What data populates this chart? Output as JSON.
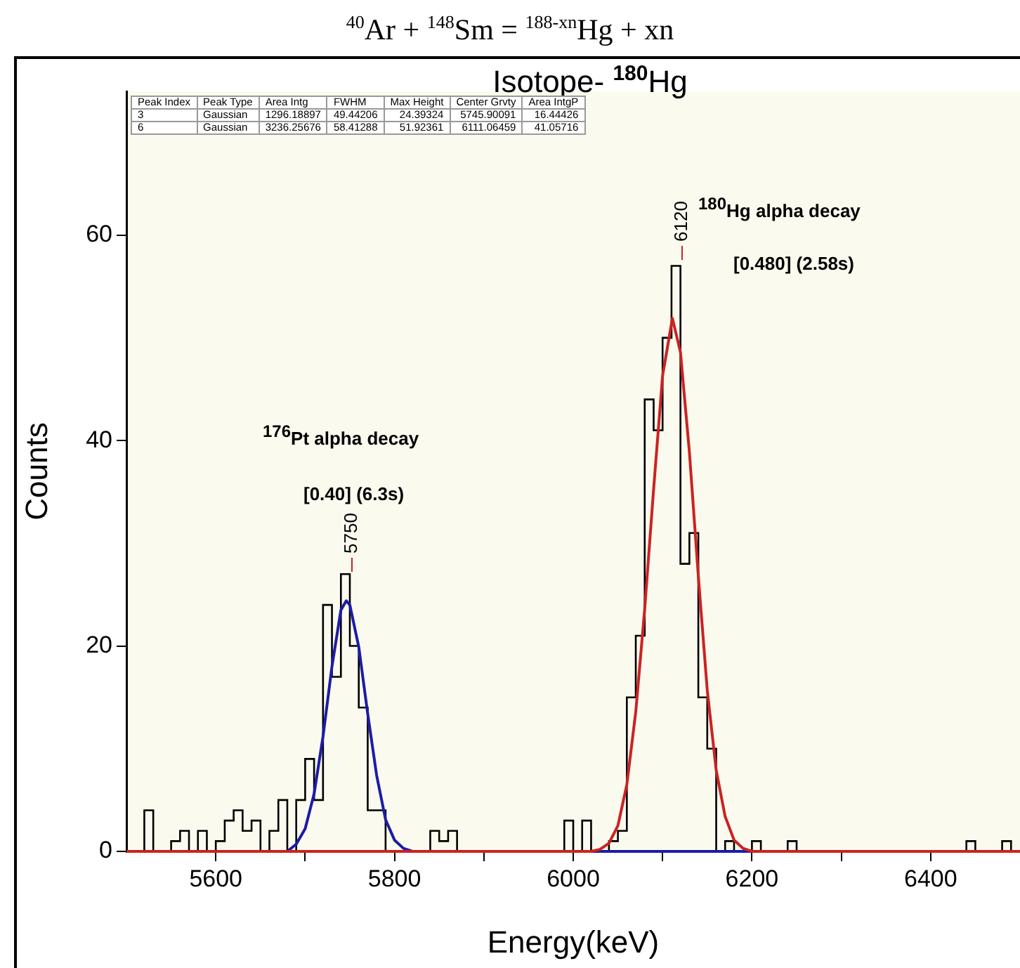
{
  "chart_data": {
    "type": "step",
    "title": "$^{40}$Ar + $^{148}$Sm = $^{188-xn}$Hg + xn",
    "subtitle": "Isotope- $^{180}$Hg",
    "xlabel": "Energy(keV)",
    "ylabel": "Counts",
    "series": [
      {
        "color": "#000000",
        "x": [
          5500,
          5510,
          5520,
          5530,
          5540,
          5550,
          5560,
          5570,
          5580,
          5590,
          5600,
          5610,
          5620,
          5630,
          5640,
          5650,
          5660,
          5670,
          5680,
          5690,
          5700,
          5710,
          5720,
          5730,
          5740,
          5750,
          5760,
          5770,
          5780,
          5790,
          5800,
          5810,
          5820,
          5830,
          5840,
          5850,
          5860,
          5870,
          5880,
          5890,
          5900,
          5910,
          5920,
          5930,
          5940,
          5950,
          5960,
          5970,
          5980,
          5990,
          6000,
          6010,
          6020,
          6030,
          6040,
          6050,
          6060,
          6070,
          6080,
          6090,
          6100,
          6110,
          6120,
          6130,
          6140,
          6150,
          6160,
          6170,
          6180,
          6190,
          6200,
          6210,
          6220,
          6230,
          6240,
          6250,
          6260,
          6270,
          6280,
          6290,
          6300,
          6310,
          6320,
          6330,
          6340,
          6350,
          6360,
          6370,
          6380,
          6390,
          6400,
          6410,
          6420,
          6430,
          6440,
          6450,
          6460,
          6470,
          6480,
          6490,
          6500
        ],
        "values": [
          0,
          0,
          4,
          0,
          0,
          1,
          2,
          0,
          2,
          0,
          1,
          3,
          4,
          2,
          3,
          0,
          2,
          5,
          0,
          5,
          9,
          5,
          24,
          17,
          27,
          20,
          14,
          4,
          4,
          0,
          0,
          0,
          0,
          0,
          2,
          1,
          2,
          0,
          0,
          0,
          0,
          0,
          0,
          0,
          0,
          0,
          0,
          0,
          0,
          3,
          0,
          3,
          0,
          0,
          1,
          2,
          15,
          21,
          44,
          41,
          50,
          57,
          28,
          31,
          15,
          10,
          0,
          1,
          0,
          0,
          1,
          0,
          0,
          0,
          1,
          0,
          0,
          0,
          0,
          0,
          0,
          0,
          0,
          0,
          0,
          0,
          0,
          0,
          0,
          0,
          0,
          0,
          0,
          0,
          1,
          0,
          0,
          0,
          1,
          0,
          0
        ]
      },
      {
        "type": "line",
        "color": "#1c1ca8",
        "x": [
          5500,
          5680,
          5690,
          5700,
          5710,
          5720,
          5730,
          5740,
          5746,
          5750,
          5760,
          5770,
          5780,
          5790,
          5800,
          5810,
          5820,
          6500
        ],
        "values": [
          0,
          0,
          0.7,
          2.2,
          5.6,
          11.2,
          18,
          23.5,
          24.4,
          24,
          19.9,
          13.4,
          7.4,
          3.1,
          1.1,
          0.3,
          0,
          0
        ]
      },
      {
        "type": "line",
        "color": "#cc2222",
        "x": [
          5500,
          6020,
          6030,
          6040,
          6050,
          6060,
          6070,
          6080,
          6090,
          6100,
          6111,
          6120,
          6130,
          6140,
          6150,
          6160,
          6170,
          6180,
          6190,
          6200,
          6500
        ],
        "values": [
          0,
          0,
          0.2,
          0.8,
          2.5,
          6.5,
          13.6,
          23.6,
          35.3,
          46.3,
          51.9,
          48.6,
          38.9,
          26.8,
          15.7,
          7.9,
          3.4,
          1.1,
          0.3,
          0,
          0
        ]
      }
    ],
    "xlim": [
      5500,
      6500
    ],
    "xticks": [
      5600,
      {
        "value": 5700,
        "label": null
      },
      5800,
      {
        "value": 5900,
        "label": null
      },
      6000,
      {
        "value": 6100,
        "label": null
      },
      6200,
      {
        "value": 6300,
        "label": null
      },
      6400
    ],
    "ylim": [
      0,
      74
    ],
    "yticks": [
      0,
      20,
      40,
      60
    ],
    "annotations": [
      "Peak Index\tPeak Type\tArea Intg\tFWHM\tMax Height\tCenter Grvty\tArea IntgP",
      "3\tGaussian\t1296.18897\t49.44206\t24.39324\t5745.90091\t16.44426",
      "6\tGaussian\t3236.25676\t58.41288\t51.92361\t6111.06459\t41.05716",
      "$^{176}$Pt alpha decay",
      "[0.40] (6.3s)",
      "$^{180}$Hg alpha decay",
      "[0.480] (2.58s)",
      "5750",
      "6120"
    ]
  }
}
